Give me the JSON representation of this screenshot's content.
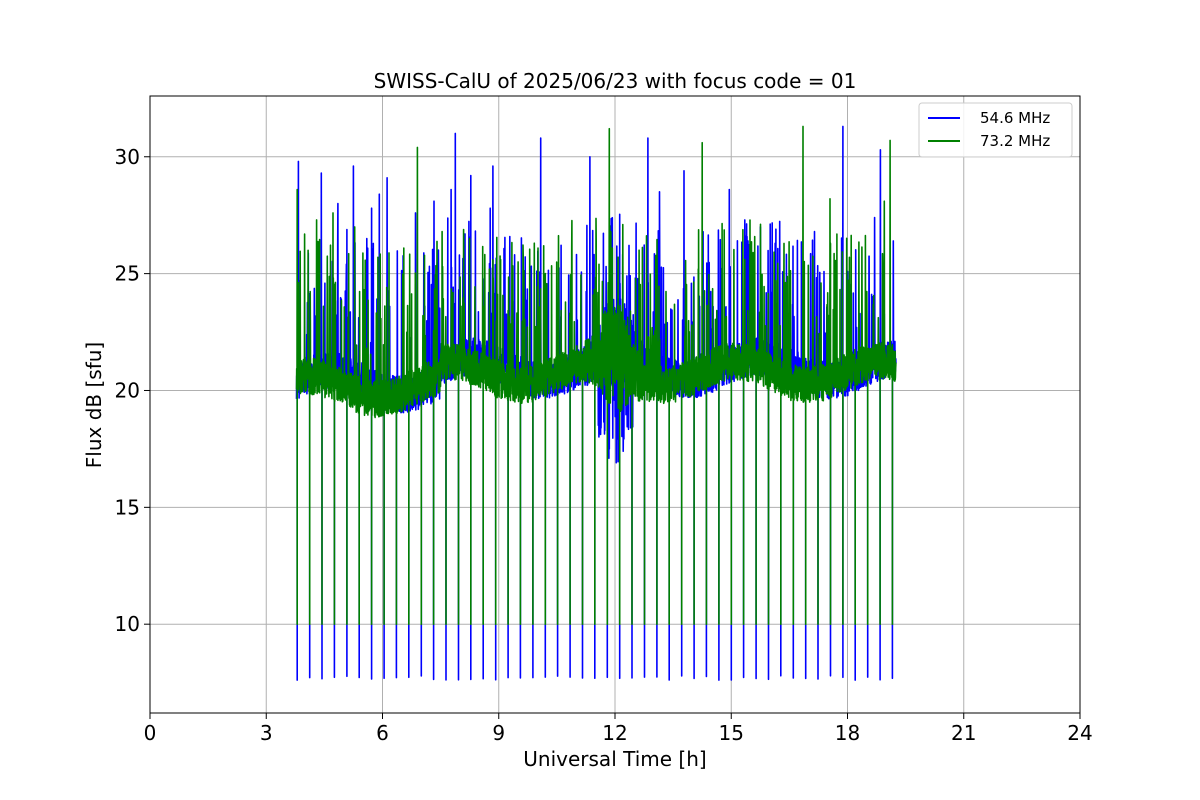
{
  "chart_data": {
    "type": "line",
    "title": "SWISS-CalU of 2025/06/23 with focus code = 01",
    "xlabel": "Universal Time [h]",
    "ylabel": "Flux dB [sfu]",
    "xlim": [
      0,
      24
    ],
    "ylim": [
      6.2,
      32.6
    ],
    "xticks": [
      0,
      3,
      6,
      9,
      12,
      15,
      18,
      21,
      24
    ],
    "xtick_labels": [
      "0",
      "3",
      "6",
      "9",
      "12",
      "15",
      "18",
      "21",
      "24"
    ],
    "yticks": [
      10,
      15,
      20,
      25,
      30
    ],
    "ytick_labels": [
      "10",
      "15",
      "20",
      "25",
      "30"
    ],
    "grid": true,
    "legend_position": "top-right",
    "time_range": [
      3.78,
      19.25
    ],
    "series": [
      {
        "name": "54.6 MHz",
        "color": "#0000ff",
        "baseline": 20.1,
        "dips": {
          "every_h": 0.32,
          "low": 7.6,
          "high": 10.0
        },
        "spikes": [
          {
            "x": 3.83,
            "y": 29.8
          },
          {
            "x": 4.42,
            "y": 29.3
          },
          {
            "x": 4.85,
            "y": 28.0
          },
          {
            "x": 5.25,
            "y": 29.6
          },
          {
            "x": 5.72,
            "y": 27.8
          },
          {
            "x": 5.92,
            "y": 28.4
          },
          {
            "x": 6.12,
            "y": 29.1
          },
          {
            "x": 6.85,
            "y": 27.6
          },
          {
            "x": 7.33,
            "y": 28.1
          },
          {
            "x": 7.77,
            "y": 28.6
          },
          {
            "x": 7.88,
            "y": 31.0
          },
          {
            "x": 8.28,
            "y": 29.2
          },
          {
            "x": 8.78,
            "y": 27.8
          },
          {
            "x": 8.85,
            "y": 29.6
          },
          {
            "x": 10.08,
            "y": 30.8
          },
          {
            "x": 11.35,
            "y": 30.0
          },
          {
            "x": 12.85,
            "y": 30.8
          },
          {
            "x": 13.15,
            "y": 28.5
          },
          {
            "x": 13.78,
            "y": 29.4
          },
          {
            "x": 14.95,
            "y": 28.6
          },
          {
            "x": 15.35,
            "y": 27.3
          },
          {
            "x": 15.75,
            "y": 27.0
          },
          {
            "x": 16.15,
            "y": 26.9
          },
          {
            "x": 17.15,
            "y": 26.8
          },
          {
            "x": 17.88,
            "y": 31.3
          },
          {
            "x": 18.7,
            "y": 27.4
          },
          {
            "x": 18.85,
            "y": 30.3
          },
          {
            "x": 19.18,
            "y": 26.4
          }
        ]
      },
      {
        "name": "73.2 MHz",
        "color": "#008000",
        "baseline": 19.9,
        "dips": {
          "every_h": 0.32,
          "low": 10.0,
          "high": 10.0
        },
        "spikes": [
          {
            "x": 3.8,
            "y": 28.6
          },
          {
            "x": 4.08,
            "y": 26.0
          },
          {
            "x": 4.3,
            "y": 27.3
          },
          {
            "x": 4.72,
            "y": 27.6
          },
          {
            "x": 5.28,
            "y": 27.0
          },
          {
            "x": 5.88,
            "y": 25.7
          },
          {
            "x": 6.9,
            "y": 30.4
          },
          {
            "x": 7.55,
            "y": 25.3
          },
          {
            "x": 8.25,
            "y": 26.5
          },
          {
            "x": 9.05,
            "y": 25.6
          },
          {
            "x": 9.5,
            "y": 25.5
          },
          {
            "x": 11.85,
            "y": 31.2
          },
          {
            "x": 12.2,
            "y": 27.1
          },
          {
            "x": 14.25,
            "y": 30.6
          },
          {
            "x": 15.35,
            "y": 25.6
          },
          {
            "x": 16.85,
            "y": 31.3
          },
          {
            "x": 17.55,
            "y": 28.2
          },
          {
            "x": 18.05,
            "y": 25.7
          },
          {
            "x": 18.95,
            "y": 28.1
          },
          {
            "x": 19.1,
            "y": 30.7
          }
        ]
      }
    ]
  }
}
